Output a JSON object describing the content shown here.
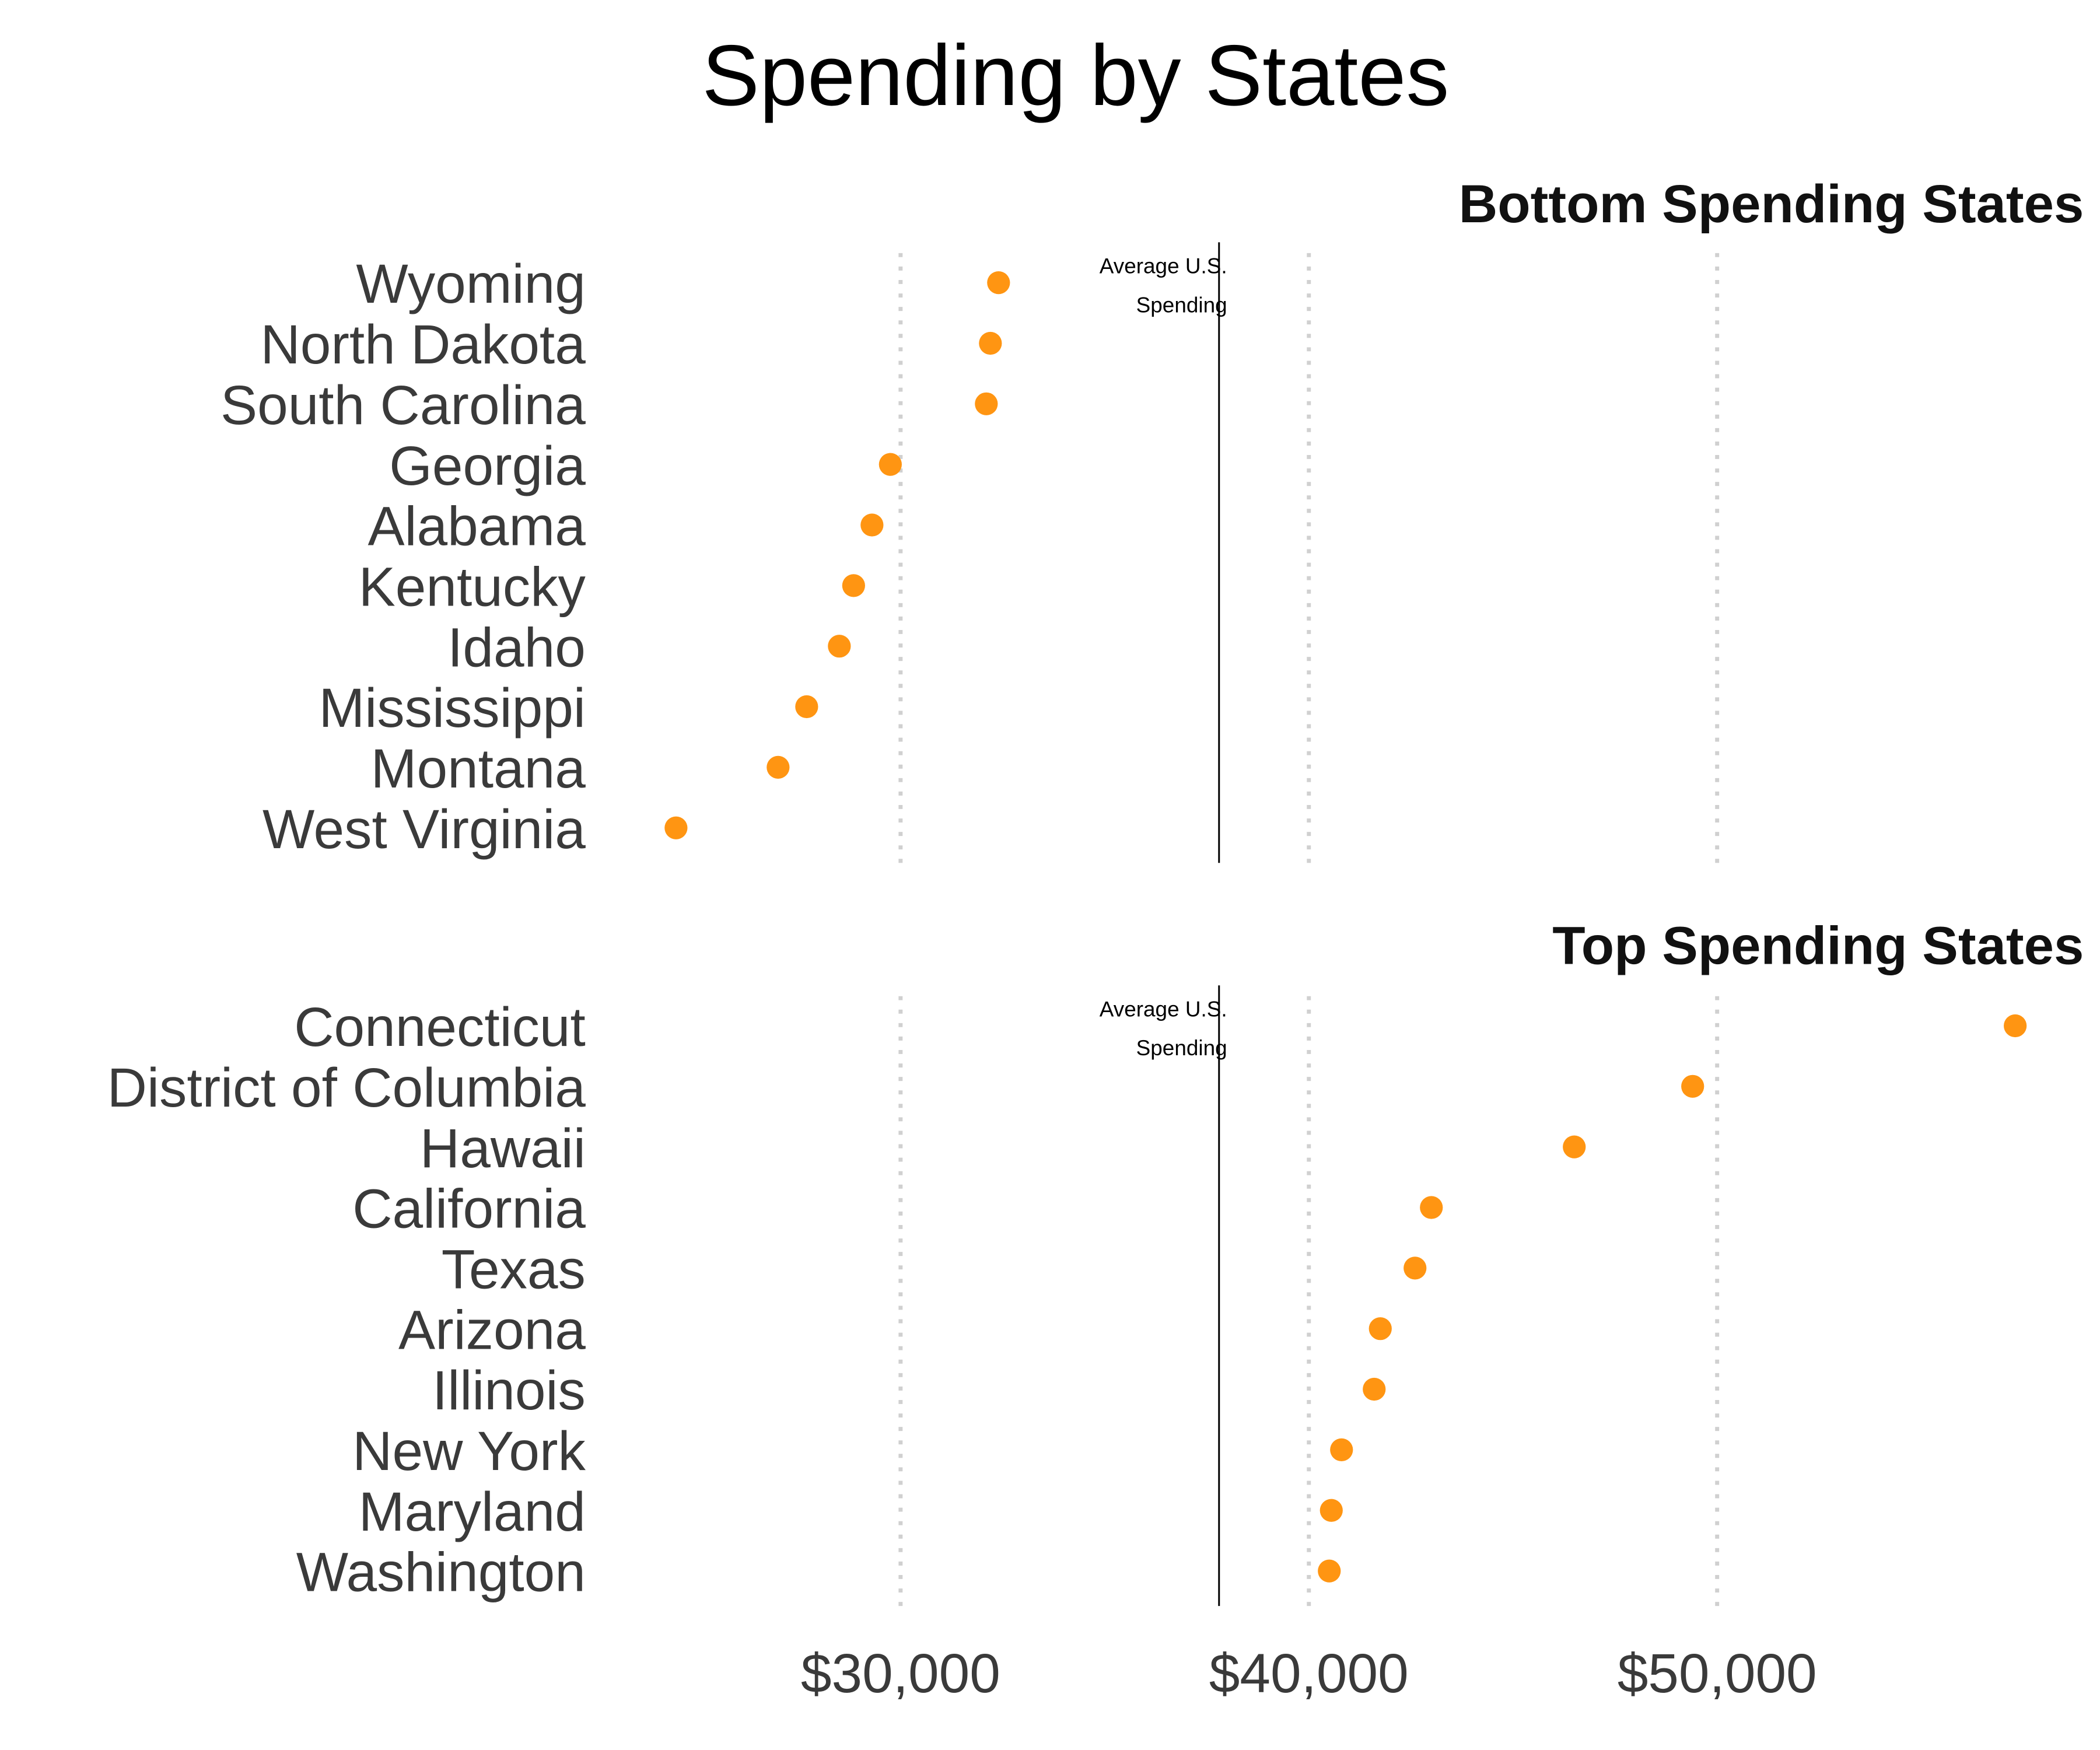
{
  "chart_data": [
    {
      "type": "scatter",
      "title": "Spending by States",
      "subtitle": "Bottom Spending States",
      "categories": [
        "Wyoming",
        "North Dakota",
        "South Carolina",
        "Georgia",
        "Alabama",
        "Kentucky",
        "Idaho",
        "Mississippi",
        "Montana",
        "West Virginia"
      ],
      "values": [
        32400,
        32200,
        32100,
        29750,
        29300,
        28850,
        28500,
        27700,
        27000,
        24500
      ],
      "reference_line": {
        "value": 37800,
        "label_line1": "Average U.S.",
        "label_line2": "Spending"
      },
      "xlim": [
        22000,
        58500
      ],
      "xticks": [
        30000,
        40000,
        50000
      ],
      "grid": "vertical dotted",
      "marker_color": "#FF9512"
    },
    {
      "type": "scatter",
      "subtitle": "Top Spending States",
      "categories": [
        "Connecticut",
        "District of Columbia",
        "Hawaii",
        "California",
        "Texas",
        "Arizona",
        "Illinois",
        "New York",
        "Maryland",
        "Washington"
      ],
      "values": [
        57300,
        49400,
        46500,
        43000,
        42600,
        41750,
        41600,
        40800,
        40550,
        40500
      ],
      "reference_line": {
        "value": 37800,
        "label_line1": "Average U.S.",
        "label_line2": "Spending"
      },
      "xlim": [
        22000,
        58500
      ],
      "xticks": [
        30000,
        40000,
        50000
      ],
      "xtick_labels": [
        "$30,000",
        "$40,000",
        "$50,000"
      ],
      "grid": "vertical dotted",
      "marker_color": "#FF9512"
    }
  ]
}
